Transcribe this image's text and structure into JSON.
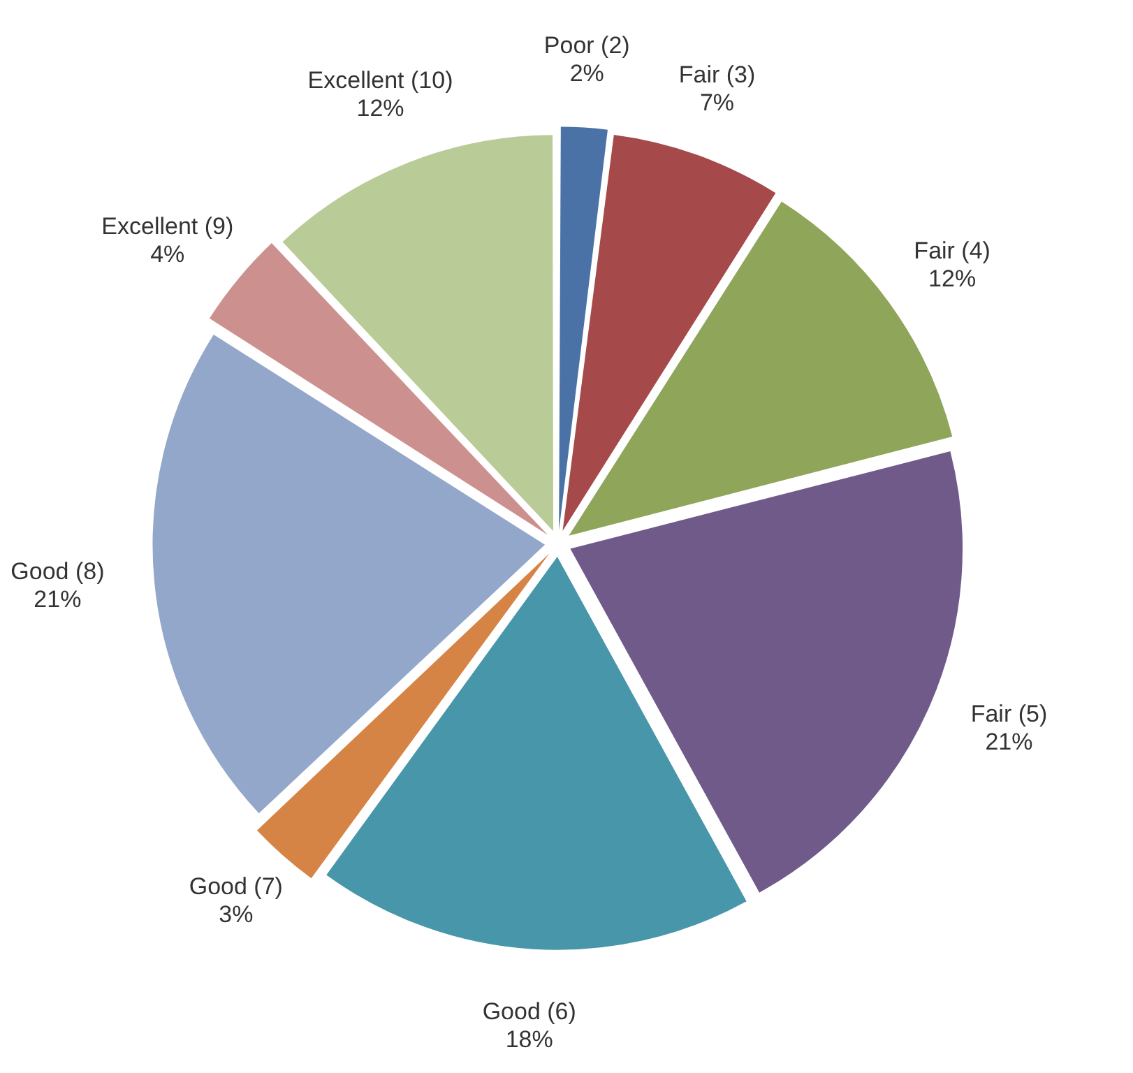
{
  "chart_data": {
    "type": "pie",
    "categories": [
      "Poor (2)",
      "Fair (3)",
      "Fair (4)",
      "Fair (5)",
      "Good (6)",
      "Good (7)",
      "Good (8)",
      "Excellent (9)",
      "Excellent (10)"
    ],
    "values": [
      2,
      7,
      12,
      21,
      18,
      3,
      21,
      4,
      12
    ],
    "value_labels": [
      "2%",
      "7%",
      "12%",
      "21%",
      "18%",
      "3%",
      "21%",
      "4%",
      "12%"
    ],
    "colors": [
      "#4a72a6",
      "#a5494a",
      "#8fa55a",
      "#6f5a8a",
      "#4896a9",
      "#d68445",
      "#93a7ca",
      "#cc918f",
      "#b9cb97"
    ],
    "legend": false
  }
}
